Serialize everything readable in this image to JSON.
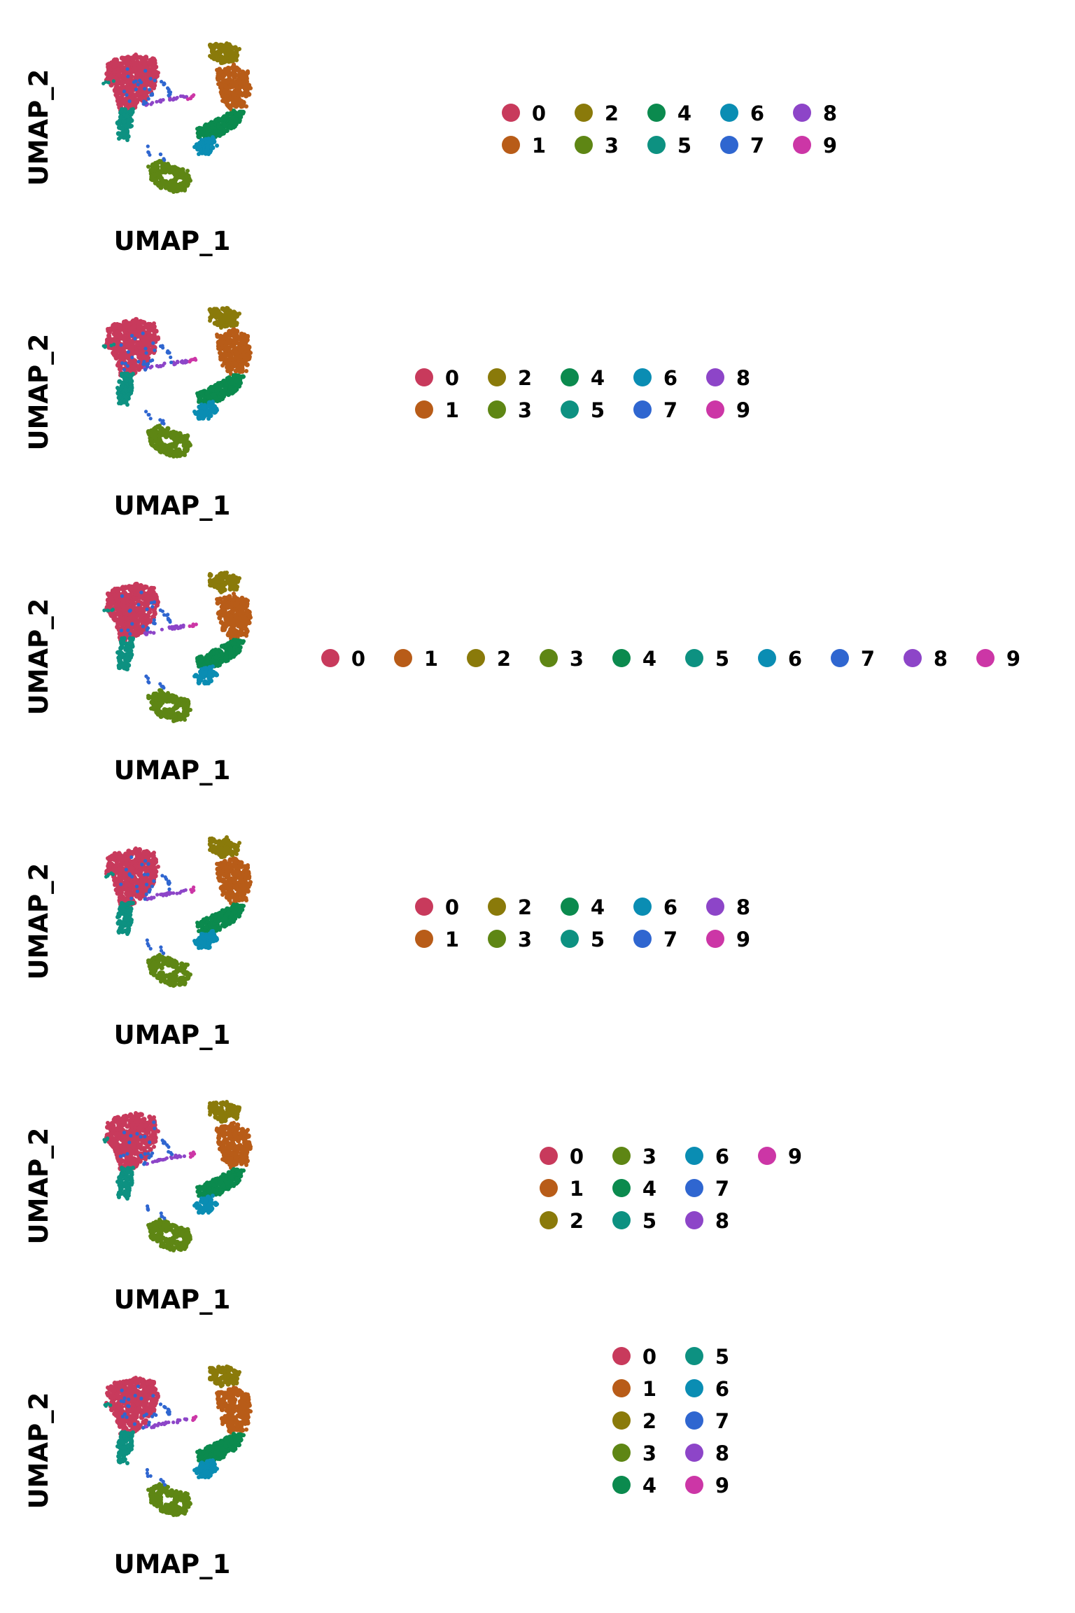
{
  "palette": {
    "0": "#c83a5c",
    "1": "#b85c18",
    "2": "#8a7a0a",
    "3": "#5e8614",
    "4": "#0b8a4e",
    "5": "#0d9181",
    "6": "#0a8db3",
    "7": "#2f66d0",
    "8": "#8d45c8",
    "9": "#cc36a6"
  },
  "chart_data": [
    {
      "type": "scatter",
      "xlabel": "UMAP_1",
      "ylabel": "UMAP_2",
      "grid": false,
      "legend": {
        "position": "right",
        "columns": 6,
        "layout": "by-column",
        "entries": [
          "0",
          "1",
          "2",
          "3",
          "4",
          "5",
          "6",
          "7",
          "8",
          "9"
        ]
      }
    },
    {
      "type": "scatter",
      "xlabel": "UMAP_1",
      "ylabel": "UMAP_2",
      "grid": false,
      "legend": {
        "position": "right",
        "columns": 5,
        "layout": "by-column",
        "entries": [
          "0",
          "1",
          "2",
          "3",
          "4",
          "5",
          "6",
          "7",
          "8",
          "9"
        ]
      }
    },
    {
      "type": "scatter",
      "xlabel": "UMAP_1",
      "ylabel": "UMAP_2",
      "grid": false,
      "legend": {
        "position": "right",
        "columns": 10,
        "layout": "single-row",
        "entries": [
          "0",
          "1",
          "2",
          "3",
          "4",
          "5",
          "6",
          "7",
          "8",
          "9"
        ]
      }
    },
    {
      "type": "scatter",
      "xlabel": "UMAP_1",
      "ylabel": "UMAP_2",
      "grid": false,
      "legend": {
        "position": "right",
        "columns": 5,
        "layout": "by-column",
        "entries": [
          "0",
          "1",
          "2",
          "3",
          "4",
          "5",
          "6",
          "7",
          "8",
          "9"
        ]
      }
    },
    {
      "type": "scatter",
      "xlabel": "UMAP_1",
      "ylabel": "UMAP_2",
      "grid": false,
      "legend": {
        "position": "right",
        "columns": 4,
        "layout": "by-column",
        "entries": [
          "0",
          "1",
          "2",
          "3",
          "4",
          "5",
          "6",
          "7",
          "8",
          "9"
        ]
      }
    },
    {
      "type": "scatter",
      "xlabel": "UMAP_1",
      "ylabel": "UMAP_2",
      "grid": false,
      "legend": {
        "position": "right",
        "columns": 2,
        "layout": "by-column",
        "entries": [
          "0",
          "1",
          "2",
          "3",
          "4",
          "5",
          "6",
          "7",
          "8",
          "9"
        ]
      }
    }
  ]
}
